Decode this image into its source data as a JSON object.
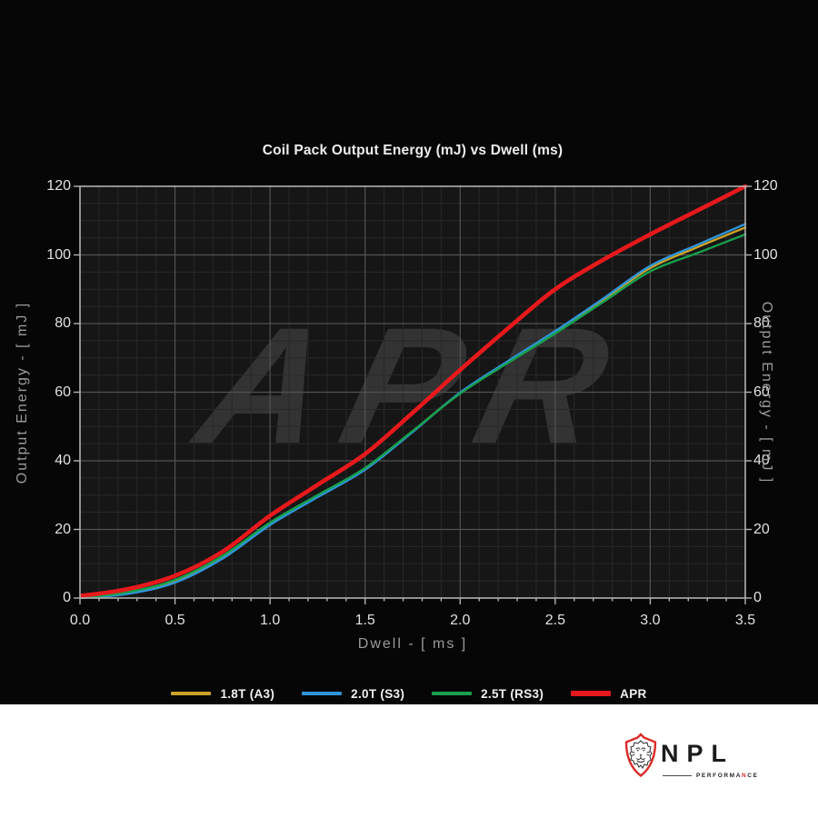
{
  "chart_data": {
    "type": "line",
    "title": "Coil Pack Output Energy (mJ) vs Dwell (ms)",
    "xlabel": "Dwell - [ ms ]",
    "ylabel_left": "Output Energy - [ mJ ]",
    "ylabel_right": "Output Energy - [ mJ ]",
    "xlim": [
      0,
      3.5
    ],
    "ylim": [
      0,
      120
    ],
    "x_ticks": [
      0,
      0.5,
      1,
      1.5,
      2,
      2.5,
      3,
      3.5
    ],
    "x_tick_labels": [
      "0.0",
      "0.5",
      "1.0",
      "1.5",
      "2.0",
      "2.5",
      "3.0",
      "3.5"
    ],
    "y_ticks": [
      0,
      20,
      40,
      60,
      80,
      100,
      120
    ],
    "y_tick_labels": [
      "0",
      "20",
      "40",
      "60",
      "80",
      "100",
      "120"
    ],
    "x_minor_step": 0.1,
    "y_minor_step": 5,
    "grid": true,
    "legend_position": "bottom-center",
    "watermark": "APR",
    "watermark_color": "#333333",
    "plot_bg_color": "#161616",
    "grid_major_color": "#525252",
    "grid_minor_color": "#292929",
    "spine_color": "#b2b2b2",
    "x": [
      0,
      0.25,
      0.5,
      0.75,
      1,
      1.25,
      1.5,
      1.75,
      2,
      2.25,
      2.5,
      2.75,
      3,
      3.25,
      3.5
    ],
    "series": [
      {
        "name": "1.8T (A3)",
        "color": "#c9a227",
        "width": 2.4,
        "y": [
          0,
          1.4,
          4.8,
          11.8,
          21.6,
          29.7,
          37.7,
          48.6,
          59.8,
          68.8,
          77.5,
          86.8,
          96.2,
          102.3,
          108
        ]
      },
      {
        "name": "2.0T (S3)",
        "color": "#2e93d9",
        "width": 2.4,
        "y": [
          0,
          1.2,
          4.5,
          11.5,
          21.3,
          29.4,
          37.4,
          48.4,
          59.9,
          69,
          77.8,
          87.2,
          96.8,
          103,
          109
        ]
      },
      {
        "name": "2.5T (RS3)",
        "color": "#18a04e",
        "width": 2.4,
        "y": [
          0,
          1.7,
          5.3,
          12.3,
          22,
          30,
          37.9,
          48.7,
          59.6,
          68.5,
          77.1,
          86.2,
          95.2,
          100.6,
          106
        ]
      },
      {
        "name": "APR",
        "color": "#e8191c",
        "width": 4.6,
        "y": [
          0.6,
          2.6,
          6.5,
          13.5,
          24,
          33,
          42,
          54,
          66.5,
          78.5,
          90,
          98.5,
          106,
          113,
          120
        ]
      }
    ]
  },
  "branding": {
    "name": "NPL",
    "subtitle_pre": "PERFORMA",
    "subtitle_accent": "N",
    "subtitle_post": "CE",
    "shield_color": "#d92b26"
  }
}
